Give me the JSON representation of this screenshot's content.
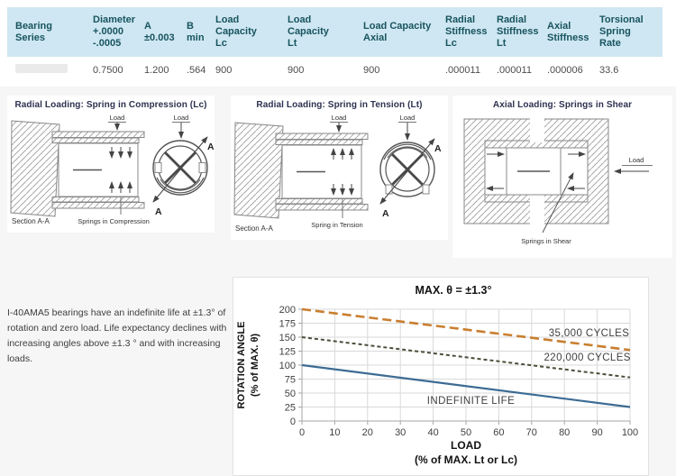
{
  "table": {
    "headers": [
      "Bearing Series",
      "Diameter\n+.0000\n-.0005",
      "A\n±0.003",
      "B\nmin",
      "Load Capacity\nLc",
      "Load Capacity\nLt",
      "Load Capacity\nAxial",
      "Radial\nStiffness\nLc",
      "Radial\nStiffness\nLt",
      "Axial\nStiffness",
      "Torsional\nSpring\nRate"
    ],
    "row": [
      "",
      "0.7500",
      "1.200",
      ".564",
      "900",
      "900",
      "900",
      ".000011",
      ".000011",
      ".000006",
      "33.6"
    ]
  },
  "diagrams": [
    {
      "title": "Radial Loading: Spring in Compression (Lc)",
      "load_label": "Load",
      "section_label": "Section A-A",
      "spring_label": "Springs in Compression",
      "a_label": "A"
    },
    {
      "title": "Radial Loading: Spring in Tension (Lt)",
      "load_label": "Load",
      "section_label": "Section A-A",
      "spring_label": "Spring in Tension",
      "a_label": "A"
    },
    {
      "title": "Axial Loading: Springs in Shear",
      "load_label": "Load",
      "spring_label": "Springs in Shear"
    }
  ],
  "note": {
    "text": "I-40AMA5  bearings have an indefinite life at ±1.3° of rotation and zero load.  Life expectancy declines with increasing angles above ±1.3 ° and with increasing loads."
  },
  "chart_data": {
    "type": "line",
    "title": "MAX. θ = ±1.3°",
    "xlabel": "LOAD",
    "xlabel_sub": "(% of MAX. Lt or Lc)",
    "ylabel": "ROTATION ANGLE",
    "ylabel_sub": "(% of MAX. θ)",
    "xlim": [
      0,
      100
    ],
    "ylim": [
      0,
      200
    ],
    "x_ticks": [
      0,
      10,
      20,
      30,
      40,
      50,
      60,
      70,
      80,
      90,
      100
    ],
    "y_ticks": [
      0,
      25,
      50,
      75,
      100,
      125,
      150,
      175,
      200
    ],
    "grid": true,
    "legend_position": "inline-labels",
    "colors": {
      "grid": "#d9d9d9",
      "axis": "#a6a6a6",
      "tick_text": "#404040"
    },
    "series": [
      {
        "name": "35,000 CYCLES",
        "x": [
          0,
          100
        ],
        "y": [
          200,
          127
        ],
        "color": "#c97e2f",
        "style": "long-dash",
        "label_pos": [
          87.5,
          152
        ]
      },
      {
        "name": "220,000 CYCLES",
        "x": [
          0,
          100
        ],
        "y": [
          150,
          78
        ],
        "color": "#4a4f3a",
        "style": "short-dash",
        "label_pos": [
          87,
          108
        ]
      },
      {
        "name": "INDEFINITE LIFE",
        "x": [
          0,
          100
        ],
        "y": [
          100,
          25
        ],
        "color": "#3c6b94",
        "style": "solid",
        "label_pos": [
          51.5,
          31
        ]
      }
    ]
  },
  "theme": {
    "header_bg": "#cfe7f2",
    "header_text": "#17545f",
    "page_bg": "#f6f6f6"
  }
}
